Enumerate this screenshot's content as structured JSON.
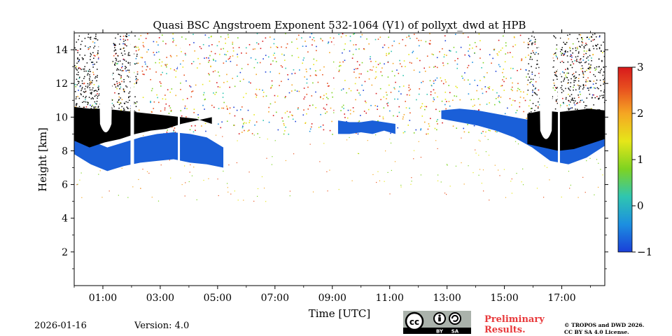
{
  "chart_data": {
    "type": "heatmap",
    "title": "Quasi BSC Angstroem Exponent 532-1064 (V1) of pollyxt_dwd at HPB",
    "xlabel": "Time [UTC]",
    "ylabel": "Height [km]",
    "x_unit": "hours UTC",
    "xlim": [
      0,
      18.5
    ],
    "ylim": [
      0,
      15
    ],
    "xticks": [
      1,
      3,
      5,
      7,
      9,
      11,
      13,
      15,
      17
    ],
    "xtick_labels": [
      "01:00",
      "03:00",
      "05:00",
      "07:00",
      "09:00",
      "11:00",
      "13:00",
      "15:00",
      "17:00"
    ],
    "yticks": [
      2,
      4,
      6,
      8,
      10,
      12,
      14
    ],
    "ytick_labels": [
      "2",
      "4",
      "6",
      "8",
      "10",
      "12",
      "14"
    ],
    "colorbar": {
      "min": -1,
      "max": 3,
      "ticks": [
        -1,
        0,
        1,
        2,
        3
      ],
      "tick_labels": [
        "−1",
        "0",
        "1",
        "2",
        "3"
      ],
      "colors": [
        "#1a3fd8",
        "#1c8fe0",
        "#2fc6b0",
        "#7ed321",
        "#e6e619",
        "#f5a623",
        "#e8521f",
        "#d7191c"
      ]
    },
    "layers": [
      {
        "name": "cloud-black-left",
        "color": "#000000",
        "x_start": 0,
        "x_end": 4.8,
        "bottom_km": [
          8.6,
          8.2,
          8.5,
          8.7,
          9.0,
          9.2,
          9.3,
          9.6,
          9.8,
          10.0
        ],
        "top_km": [
          10.6,
          10.5,
          10.5,
          10.4,
          10.3,
          10.2,
          10.1,
          10.0,
          9.9,
          9.6
        ]
      },
      {
        "name": "aerosol-blue-left",
        "color": "#1a5fd8",
        "x_start": 0,
        "x_end": 5.2,
        "bottom_km": [
          7.8,
          7.2,
          6.8,
          7.1,
          7.3,
          7.4,
          7.5,
          7.3,
          7.2,
          7.0
        ],
        "top_km": [
          8.8,
          8.6,
          8.2,
          8.5,
          8.8,
          9.0,
          9.1,
          9.0,
          8.8,
          8.2
        ]
      },
      {
        "name": "aerosol-blue-mid",
        "color": "#1a5fd8",
        "x_start": 9.2,
        "x_end": 11.2,
        "bottom_km": [
          9.0,
          9.0,
          9.1,
          9.0,
          9.2,
          9.0
        ],
        "top_km": [
          9.8,
          9.7,
          9.7,
          9.8,
          9.7,
          9.6
        ]
      },
      {
        "name": "aerosol-blue-right",
        "color": "#1a5fd8",
        "x_start": 12.8,
        "x_end": 18.5,
        "bottom_km": [
          9.9,
          9.7,
          9.5,
          9.2,
          8.8,
          8.2,
          7.4,
          7.2,
          7.6,
          8.3
        ],
        "top_km": [
          10.4,
          10.5,
          10.4,
          10.2,
          10.0,
          9.8,
          9.6,
          9.8,
          10.0,
          10.1
        ]
      },
      {
        "name": "cloud-black-right",
        "color": "#000000",
        "x_start": 15.8,
        "x_end": 18.5,
        "bottom_km": [
          8.4,
          8.2,
          8.0,
          8.1,
          8.4,
          8.7
        ],
        "top_km": [
          10.2,
          10.4,
          10.3,
          10.4,
          10.5,
          10.4
        ]
      }
    ],
    "data_gaps_hours": [
      2.0,
      2.05,
      3.65,
      9.1,
      16.9
    ]
  },
  "footer": {
    "date": "2026-01-16",
    "version": "Version: 4.0",
    "preliminary_line1": "Preliminary",
    "preliminary_line2": "Results.",
    "copyright_line1": "© TROPOS and DWD 2026.",
    "copyright_line2": "CC BY SA 4.0 License.",
    "license_badge": {
      "cc": "cc",
      "by": "BY",
      "sa": "SA"
    }
  }
}
